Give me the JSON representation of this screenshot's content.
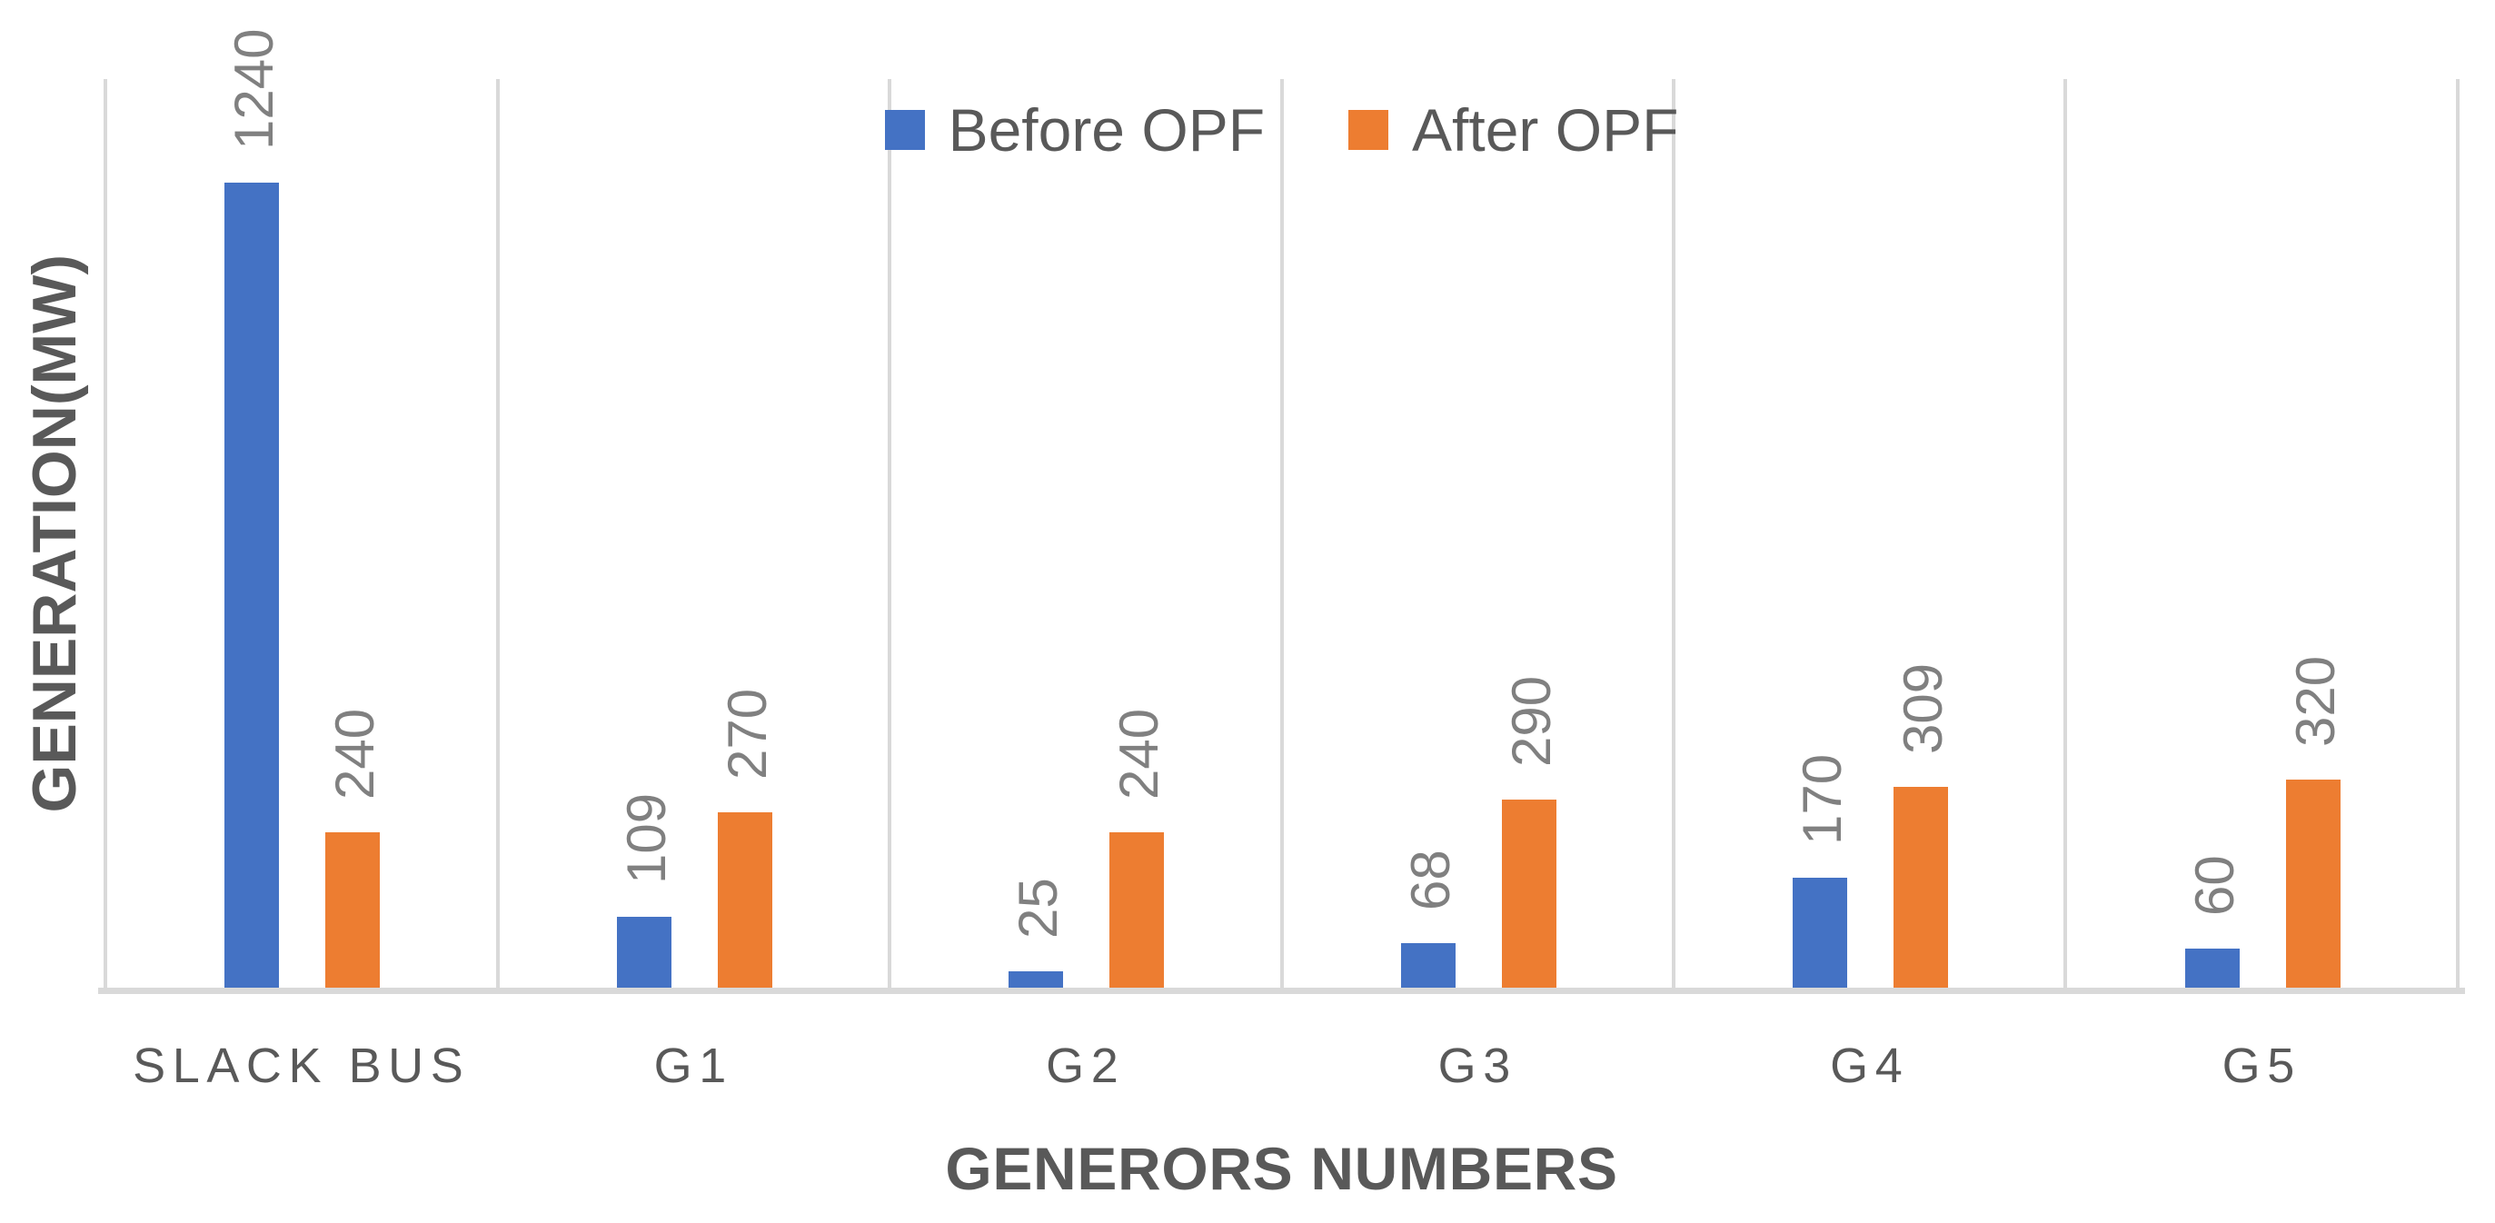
{
  "chart_data": {
    "type": "bar",
    "title": "",
    "categories": [
      "SLACK BUS",
      "G1",
      "G2",
      "G3",
      "G4",
      "G5"
    ],
    "series": [
      {
        "name": "Before OPF",
        "color": "#4472C4",
        "values": [
          1240,
          109,
          25,
          68,
          170,
          60
        ]
      },
      {
        "name": "After OPF",
        "color": "#ED7D31",
        "values": [
          240,
          270,
          240,
          290,
          309,
          320
        ]
      }
    ],
    "xlabel": "GENERORS NUMBERS",
    "ylabel": "GENERATION(MW)",
    "ylim": [
      0,
      1400
    ],
    "y_axis_tick_labels": "none",
    "legend_position": "top-center",
    "gridlines": "vertical-category-separators",
    "data_labels": "values-rotated-90-above-bars",
    "gridline_color": "#D9D9D9",
    "axis_line_color": "#D9D9D9",
    "text_color": "#595959",
    "data_label_color": "#808080",
    "background_color": "#FFFFFF"
  }
}
